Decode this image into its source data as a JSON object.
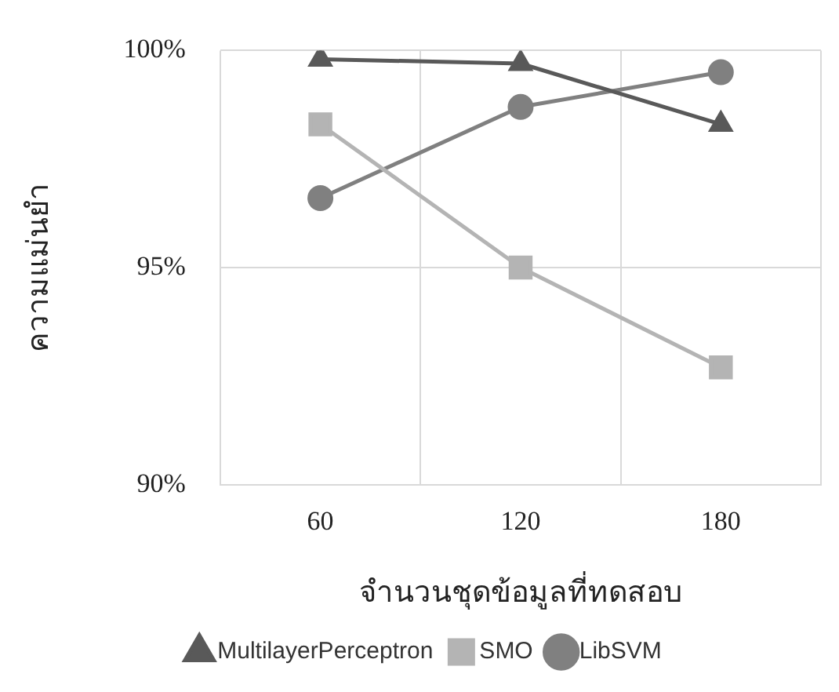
{
  "chart_data": {
    "type": "line",
    "xlabel": "จำนวนชุดข้อมูลที่ทดสอบ",
    "ylabel": "ความแม่นยำ",
    "categories": [
      "60",
      "120",
      "180"
    ],
    "series": [
      {
        "name": "MultilayerPerceptron",
        "color": "#595959",
        "marker": "triangle",
        "values": [
          99.8,
          99.7,
          98.3
        ]
      },
      {
        "name": "SMO",
        "color": "#b4b4b4",
        "marker": "square",
        "values": [
          98.3,
          95.0,
          92.7
        ]
      },
      {
        "name": "LibSVM",
        "color": "#808080",
        "marker": "circle",
        "values": [
          96.6,
          98.7,
          99.5
        ]
      }
    ],
    "ylim": [
      90,
      100
    ],
    "yticks": [
      {
        "value": 90,
        "label": "90%"
      },
      {
        "value": 95,
        "label": "95%"
      },
      {
        "value": 100,
        "label": "100%"
      }
    ],
    "grid": true,
    "legend": "bottom"
  }
}
